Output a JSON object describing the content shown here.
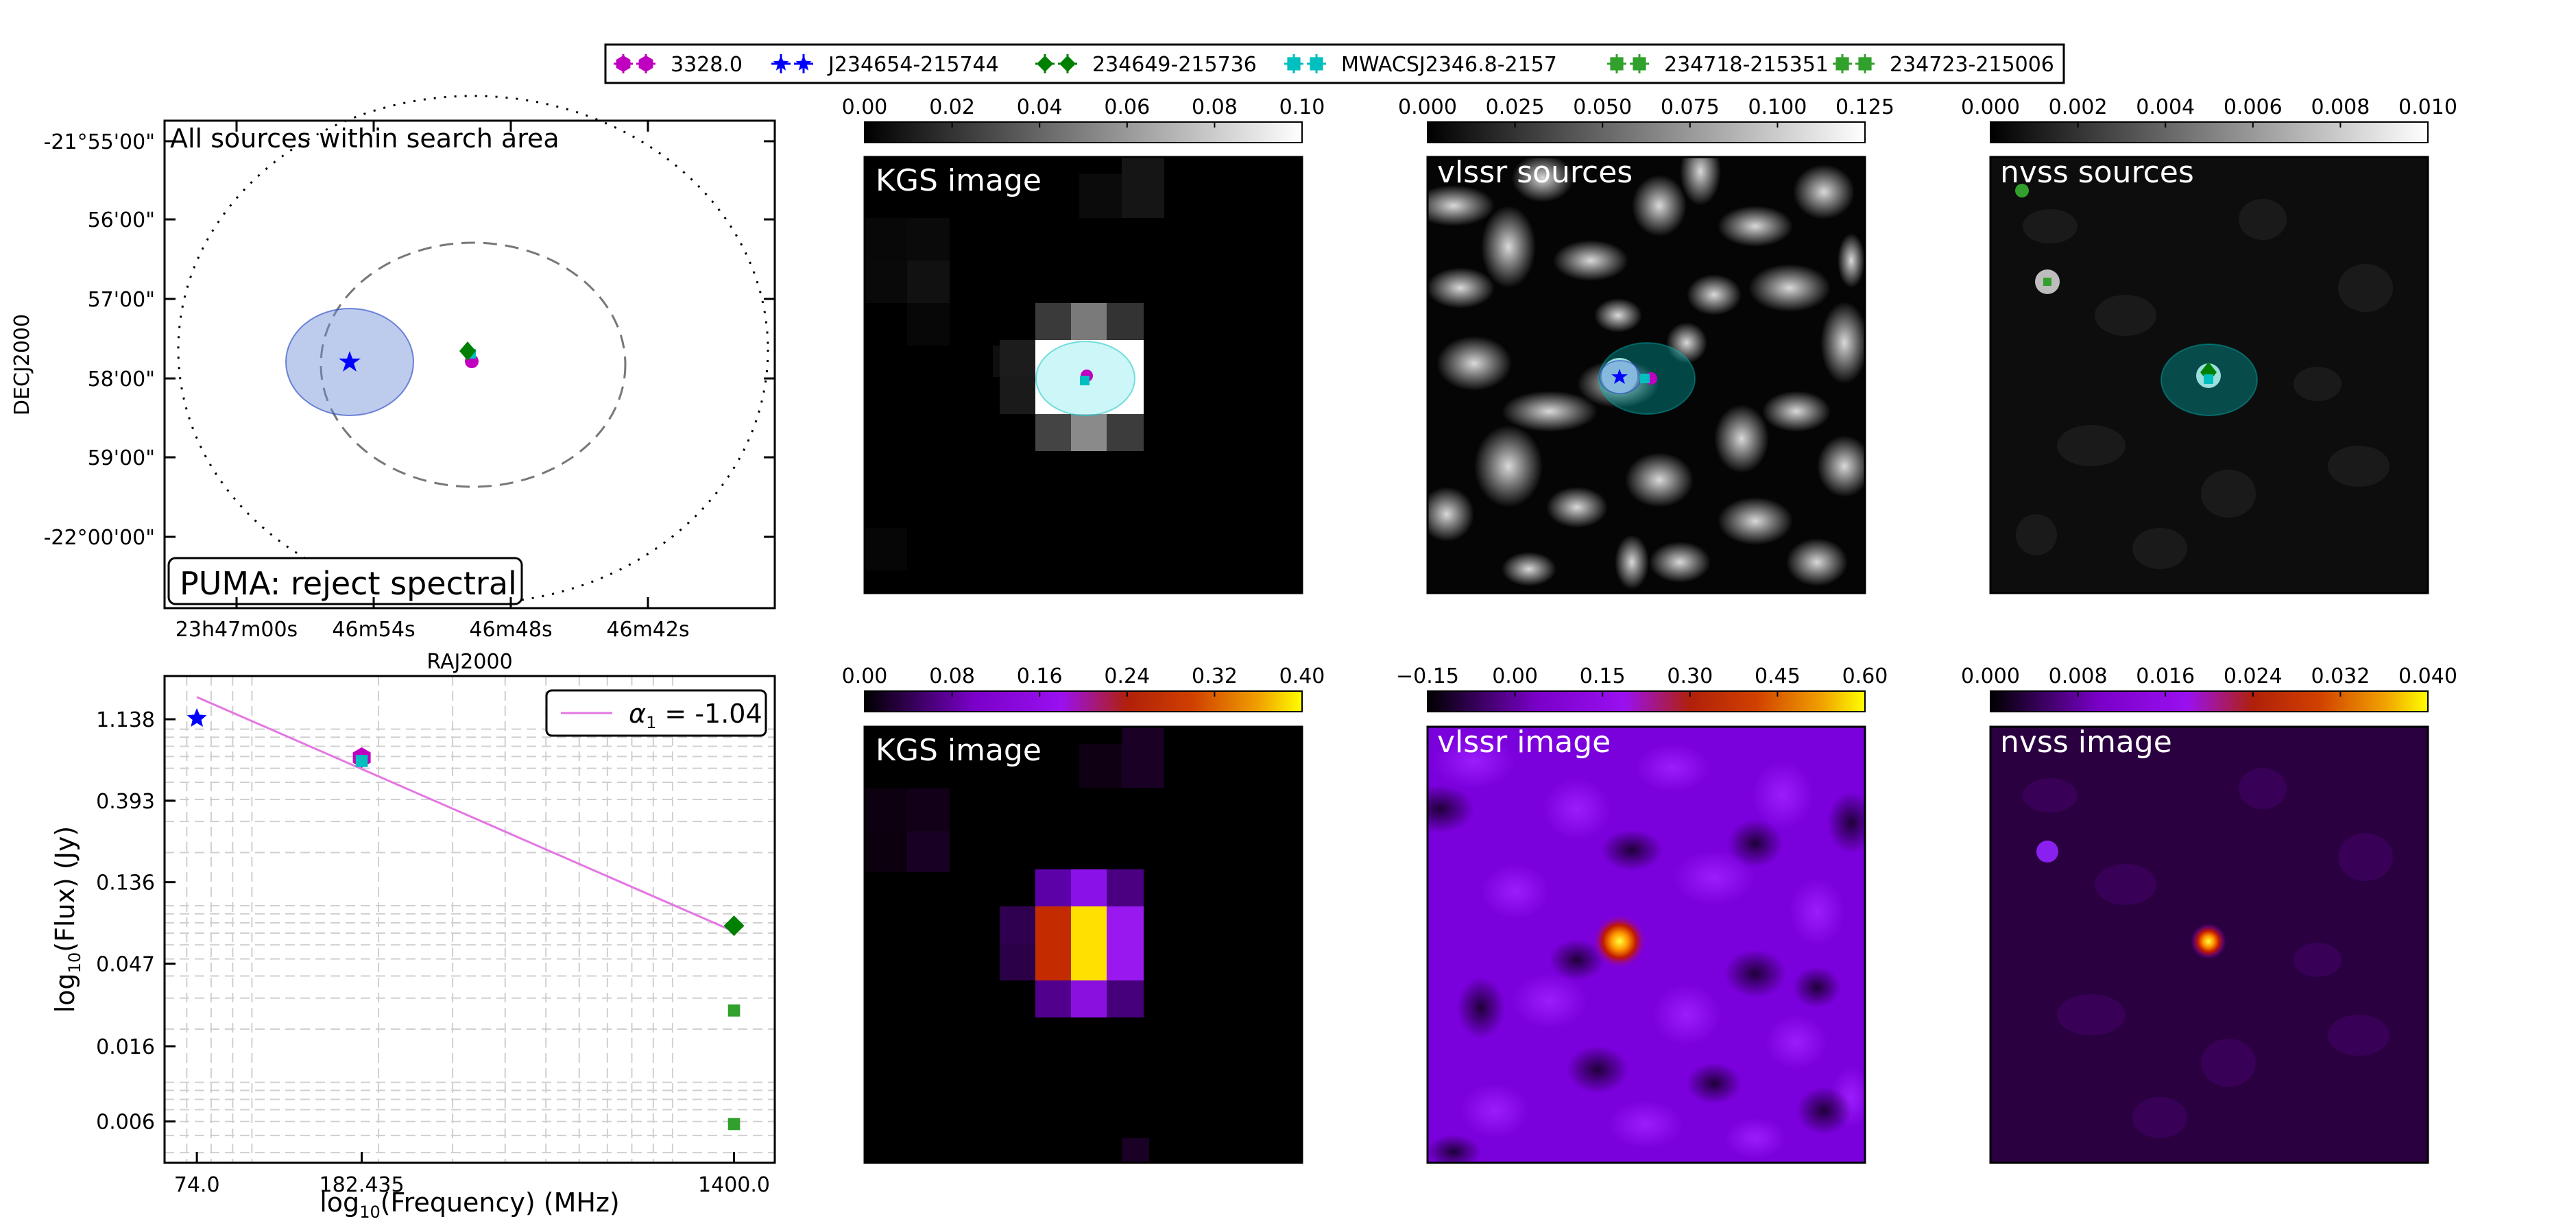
{
  "legend": [
    {
      "label": "3328.0",
      "color": "#c000c0",
      "marker": "hexagon"
    },
    {
      "label": "J234654-215744",
      "color": "#0000ff",
      "marker": "star"
    },
    {
      "label": "234649-215736",
      "color": "#008000",
      "marker": "diamond"
    },
    {
      "label": "MWACSJ2346.8-2157",
      "color": "#00bfbf",
      "marker": "square"
    },
    {
      "label": "234718-215351",
      "color": "#32a02c",
      "marker": "square"
    },
    {
      "label": "234723-215006",
      "color": "#32a02c",
      "marker": "square"
    }
  ],
  "sky_panel": {
    "title": "All sources within search area",
    "status": "PUMA: reject spectral",
    "xlabel": "RAJ2000",
    "ylabel": "DECJ2000",
    "xticks": [
      "23h47m00s",
      "46m54s",
      "46m48s",
      "46m42s"
    ],
    "yticks": [
      "-21°55'00\"",
      "56'00\"",
      "57'00\"",
      "58'00\"",
      "59'00\"",
      "-22°00'00\""
    ]
  },
  "image_panels": [
    {
      "id": "kgs-gray",
      "title": "KGS image",
      "cmap": "gray",
      "ticks": [
        "0.00",
        "0.02",
        "0.04",
        "0.06",
        "0.08",
        "0.10"
      ]
    },
    {
      "id": "vlssr-sources",
      "title": "vlssr sources",
      "cmap": "gray",
      "ticks": [
        "0.000",
        "0.025",
        "0.050",
        "0.075",
        "0.100",
        "0.125"
      ]
    },
    {
      "id": "nvss-sources",
      "title": "nvss sources",
      "cmap": "gray",
      "ticks": [
        "0.000",
        "0.002",
        "0.004",
        "0.006",
        "0.008",
        "0.010"
      ]
    },
    {
      "id": "kgs-gnuplot",
      "title": "KGS image",
      "cmap": "gnuplot",
      "ticks": [
        "0.00",
        "0.08",
        "0.16",
        "0.24",
        "0.32",
        "0.40"
      ]
    },
    {
      "id": "vlssr-image",
      "title": "vlssr image",
      "cmap": "gnuplot",
      "ticks": [
        "−0.15",
        "0.00",
        "0.15",
        "0.30",
        "0.45",
        "0.60"
      ]
    },
    {
      "id": "nvss-image",
      "title": "nvss image",
      "cmap": "gnuplot",
      "ticks": [
        "0.000",
        "0.008",
        "0.016",
        "0.024",
        "0.032",
        "0.040"
      ]
    }
  ],
  "chart_data": {
    "type": "scatter",
    "xlabel_prefix": "log",
    "xlabel_sub": "10",
    "xlabel_rest": "(Frequency) (MHz)",
    "ylabel_prefix": "log",
    "ylabel_sub": "10",
    "ylabel_rest": "(Flux) (Jy)",
    "xscale": "log",
    "yscale": "log",
    "xlim": [
      62,
      1750
    ],
    "ylim": [
      0.0035,
      2.0
    ],
    "xticks": [
      74,
      182.435,
      1400
    ],
    "xtick_labels": [
      "74.0",
      "182.435",
      "1400.0"
    ],
    "yticks": [
      1.138,
      0.393,
      0.136,
      0.047,
      0.016,
      0.006
    ],
    "ytick_labels": [
      "1.138",
      "0.393",
      "0.136",
      "0.047",
      "0.016",
      "0.006"
    ],
    "grid": true,
    "points": [
      {
        "series": "J234654-215744",
        "x": 74,
        "y": 1.15,
        "marker": "star",
        "color": "#0000ff"
      },
      {
        "series": "3328.0",
        "x": 182.435,
        "y": 0.69,
        "marker": "hexagon",
        "color": "#c000c0"
      },
      {
        "series": "MWACSJ2346.8-2157",
        "x": 182.435,
        "y": 0.66,
        "marker": "square",
        "color": "#00bfbf"
      },
      {
        "series": "234649-215736",
        "x": 1400,
        "y": 0.077,
        "marker": "diamond",
        "color": "#008000"
      },
      {
        "series": "234718-215351",
        "x": 1400,
        "y": 0.0255,
        "marker": "square",
        "color": "#32a02c"
      },
      {
        "series": "234723-215006",
        "x": 1400,
        "y": 0.0058,
        "marker": "square",
        "color": "#32a02c"
      }
    ],
    "fit": {
      "label_symbol": "α",
      "label_sub": "1",
      "label_value": " = -1.04",
      "slope": -1.04,
      "x_start": 74,
      "y_start": 1.52,
      "x_end": 1400,
      "color": "#e377e3"
    },
    "legend_position": "upper-right"
  }
}
